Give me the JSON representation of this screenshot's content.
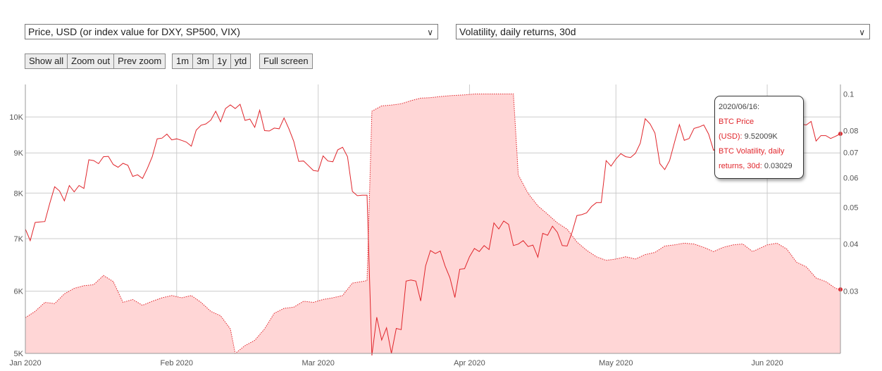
{
  "controls": {
    "left_select": "Price, USD (or index value for DXY, SP500, VIX)",
    "right_select": "Volatility, daily returns, 30d",
    "nav_buttons": [
      "Show all",
      "Zoom out",
      "Prev zoom"
    ],
    "range_buttons": [
      "1m",
      "3m",
      "1y",
      "ytd"
    ],
    "fullscreen": "Full screen"
  },
  "tooltip": {
    "date": "2020/06/16:",
    "price_label_a": "BTC Price",
    "price_label_b": "(USD):",
    "price_value": "9.52009K",
    "vol_label_a": "BTC Volatility, daily",
    "vol_label_b": "returns, 30d:",
    "vol_value": "0.03029"
  },
  "colors": {
    "price_line": "#e0252b",
    "vol_fill": "#ffd6d6",
    "vol_line": "#e0252b",
    "grid": "#cccccc"
  },
  "chart_data": {
    "type": "line",
    "x_start": "2020-01-01",
    "x_end": "2020-06-16",
    "x_ticks": [
      {
        "date": "2020-01-01",
        "label": "Jan 2020"
      },
      {
        "date": "2020-02-01",
        "label": "Feb 2020"
      },
      {
        "date": "2020-03-01",
        "label": "Mar 2020"
      },
      {
        "date": "2020-04-01",
        "label": "Apr 2020"
      },
      {
        "date": "2020-05-01",
        "label": "May 2020"
      },
      {
        "date": "2020-06-01",
        "label": "Jun 2020"
      }
    ],
    "y_left": {
      "scale": "log",
      "ylim": [
        5000,
        11000
      ],
      "ticks": [
        5000,
        6000,
        7000,
        8000,
        9000,
        10000
      ],
      "tick_labels": [
        "5K",
        "6K",
        "7K",
        "8K",
        "9K",
        "10K"
      ]
    },
    "y_right": {
      "scale": "log",
      "ylim": [
        0.0205,
        0.106
      ],
      "ticks": [
        0.03,
        0.04,
        0.05,
        0.06,
        0.07,
        0.08,
        0.1
      ],
      "tick_labels": [
        "0.03",
        "0.04",
        "0.05",
        "0.06",
        "0.07",
        "0.08",
        "0.1"
      ]
    },
    "series": [
      {
        "name": "BTC Price (USD)",
        "axis": "left",
        "type": "line",
        "points": [
          [
            "2020-01-01",
            7200
          ],
          [
            "2020-01-02",
            6960
          ],
          [
            "2020-01-03",
            7340
          ],
          [
            "2020-01-04",
            7350
          ],
          [
            "2020-01-05",
            7360
          ],
          [
            "2020-01-06",
            7760
          ],
          [
            "2020-01-07",
            8150
          ],
          [
            "2020-01-08",
            8050
          ],
          [
            "2020-01-09",
            7820
          ],
          [
            "2020-01-10",
            8180
          ],
          [
            "2020-01-11",
            8030
          ],
          [
            "2020-01-12",
            8180
          ],
          [
            "2020-01-13",
            8110
          ],
          [
            "2020-01-14",
            8820
          ],
          [
            "2020-01-15",
            8800
          ],
          [
            "2020-01-16",
            8720
          ],
          [
            "2020-01-17",
            8900
          ],
          [
            "2020-01-18",
            8910
          ],
          [
            "2020-01-19",
            8700
          ],
          [
            "2020-01-20",
            8630
          ],
          [
            "2020-01-21",
            8730
          ],
          [
            "2020-01-22",
            8680
          ],
          [
            "2020-01-23",
            8400
          ],
          [
            "2020-01-24",
            8440
          ],
          [
            "2020-01-25",
            8350
          ],
          [
            "2020-01-26",
            8600
          ],
          [
            "2020-01-27",
            8900
          ],
          [
            "2020-01-28",
            9380
          ],
          [
            "2020-01-29",
            9400
          ],
          [
            "2020-01-30",
            9510
          ],
          [
            "2020-01-31",
            9350
          ],
          [
            "2020-02-01",
            9380
          ],
          [
            "2020-02-02",
            9340
          ],
          [
            "2020-02-03",
            9290
          ],
          [
            "2020-02-04",
            9180
          ],
          [
            "2020-02-05",
            9620
          ],
          [
            "2020-02-06",
            9760
          ],
          [
            "2020-02-07",
            9800
          ],
          [
            "2020-02-08",
            9910
          ],
          [
            "2020-02-09",
            10170
          ],
          [
            "2020-02-10",
            9860
          ],
          [
            "2020-02-11",
            10250
          ],
          [
            "2020-02-12",
            10360
          ],
          [
            "2020-02-13",
            10250
          ],
          [
            "2020-02-14",
            10380
          ],
          [
            "2020-02-15",
            9900
          ],
          [
            "2020-02-16",
            9940
          ],
          [
            "2020-02-17",
            9700
          ],
          [
            "2020-02-18",
            10200
          ],
          [
            "2020-02-19",
            9610
          ],
          [
            "2020-02-20",
            9600
          ],
          [
            "2020-02-21",
            9680
          ],
          [
            "2020-02-22",
            9660
          ],
          [
            "2020-02-23",
            9970
          ],
          [
            "2020-02-24",
            9660
          ],
          [
            "2020-02-25",
            9310
          ],
          [
            "2020-02-26",
            8780
          ],
          [
            "2020-02-27",
            8790
          ],
          [
            "2020-02-28",
            8670
          ],
          [
            "2020-02-29",
            8550
          ],
          [
            "2020-03-01",
            8530
          ],
          [
            "2020-03-02",
            8920
          ],
          [
            "2020-03-03",
            8790
          ],
          [
            "2020-03-04",
            8770
          ],
          [
            "2020-03-05",
            9080
          ],
          [
            "2020-03-06",
            9150
          ],
          [
            "2020-03-07",
            8900
          ],
          [
            "2020-03-08",
            8040
          ],
          [
            "2020-03-09",
            7940
          ],
          [
            "2020-03-10",
            7950
          ],
          [
            "2020-03-11",
            7950
          ],
          [
            "2020-03-12",
            4970
          ],
          [
            "2020-03-13",
            5560
          ],
          [
            "2020-03-14",
            5200
          ],
          [
            "2020-03-15",
            5390
          ],
          [
            "2020-03-16",
            5000
          ],
          [
            "2020-03-17",
            5380
          ],
          [
            "2020-03-18",
            5360
          ],
          [
            "2020-03-19",
            6180
          ],
          [
            "2020-03-20",
            6200
          ],
          [
            "2020-03-21",
            6180
          ],
          [
            "2020-03-22",
            5830
          ],
          [
            "2020-03-23",
            6460
          ],
          [
            "2020-03-24",
            6760
          ],
          [
            "2020-03-25",
            6700
          ],
          [
            "2020-03-26",
            6750
          ],
          [
            "2020-03-27",
            6460
          ],
          [
            "2020-03-28",
            6240
          ],
          [
            "2020-03-29",
            5890
          ],
          [
            "2020-03-30",
            6400
          ],
          [
            "2020-03-31",
            6410
          ],
          [
            "2020-04-01",
            6640
          ],
          [
            "2020-04-02",
            6800
          ],
          [
            "2020-04-03",
            6740
          ],
          [
            "2020-04-04",
            6860
          ],
          [
            "2020-04-05",
            6780
          ],
          [
            "2020-04-06",
            7330
          ],
          [
            "2020-04-07",
            7200
          ],
          [
            "2020-04-08",
            7370
          ],
          [
            "2020-04-09",
            7300
          ],
          [
            "2020-04-10",
            6860
          ],
          [
            "2020-04-11",
            6890
          ],
          [
            "2020-04-12",
            6960
          ],
          [
            "2020-04-13",
            6840
          ],
          [
            "2020-04-14",
            6870
          ],
          [
            "2020-04-15",
            6630
          ],
          [
            "2020-04-16",
            7110
          ],
          [
            "2020-04-17",
            7070
          ],
          [
            "2020-04-18",
            7260
          ],
          [
            "2020-04-19",
            7130
          ],
          [
            "2020-04-20",
            6860
          ],
          [
            "2020-04-21",
            6850
          ],
          [
            "2020-04-22",
            7130
          ],
          [
            "2020-04-23",
            7490
          ],
          [
            "2020-04-24",
            7510
          ],
          [
            "2020-04-25",
            7550
          ],
          [
            "2020-04-26",
            7690
          ],
          [
            "2020-04-27",
            7780
          ],
          [
            "2020-04-28",
            7780
          ],
          [
            "2020-04-29",
            8800
          ],
          [
            "2020-04-30",
            8660
          ],
          [
            "2020-05-01",
            8840
          ],
          [
            "2020-05-02",
            8980
          ],
          [
            "2020-05-03",
            8900
          ],
          [
            "2020-05-04",
            8880
          ],
          [
            "2020-05-05",
            8990
          ],
          [
            "2020-05-06",
            9260
          ],
          [
            "2020-05-07",
            9950
          ],
          [
            "2020-05-08",
            9800
          ],
          [
            "2020-05-09",
            9540
          ],
          [
            "2020-05-10",
            8720
          ],
          [
            "2020-05-11",
            8570
          ],
          [
            "2020-05-12",
            8800
          ],
          [
            "2020-05-13",
            9280
          ],
          [
            "2020-05-14",
            9780
          ],
          [
            "2020-05-15",
            9340
          ],
          [
            "2020-05-16",
            9390
          ],
          [
            "2020-05-17",
            9670
          ],
          [
            "2020-05-18",
            9710
          ],
          [
            "2020-05-19",
            9770
          ],
          [
            "2020-05-20",
            9510
          ],
          [
            "2020-05-21",
            9070
          ],
          [
            "2020-05-22",
            9170
          ],
          [
            "2020-05-23",
            9200
          ],
          [
            "2020-05-24",
            8720
          ],
          [
            "2020-05-25",
            8900
          ],
          [
            "2020-05-26",
            8840
          ],
          [
            "2020-05-27",
            9200
          ],
          [
            "2020-05-28",
            9570
          ],
          [
            "2020-05-29",
            9430
          ],
          [
            "2020-05-30",
            9700
          ],
          [
            "2020-05-31",
            9450
          ],
          [
            "2020-06-01",
            10200
          ],
          [
            "2020-06-02",
            9520
          ],
          [
            "2020-06-03",
            9660
          ],
          [
            "2020-06-04",
            9790
          ],
          [
            "2020-06-05",
            9620
          ],
          [
            "2020-06-06",
            9670
          ],
          [
            "2020-06-07",
            9750
          ],
          [
            "2020-06-08",
            9790
          ],
          [
            "2020-06-09",
            9770
          ],
          [
            "2020-06-10",
            9870
          ],
          [
            "2020-06-11",
            9320
          ],
          [
            "2020-06-12",
            9470
          ],
          [
            "2020-06-13",
            9470
          ],
          [
            "2020-06-14",
            9390
          ],
          [
            "2020-06-15",
            9450
          ],
          [
            "2020-06-16",
            9520
          ]
        ]
      },
      {
        "name": "BTC Volatility, daily returns, 30d",
        "axis": "right",
        "type": "area",
        "points": [
          [
            "2020-01-01",
            0.0255
          ],
          [
            "2020-01-03",
            0.0265
          ],
          [
            "2020-01-05",
            0.028
          ],
          [
            "2020-01-07",
            0.0278
          ],
          [
            "2020-01-09",
            0.0295
          ],
          [
            "2020-01-11",
            0.0305
          ],
          [
            "2020-01-13",
            0.031
          ],
          [
            "2020-01-15",
            0.0312
          ],
          [
            "2020-01-17",
            0.033
          ],
          [
            "2020-01-19",
            0.0318
          ],
          [
            "2020-01-21",
            0.028
          ],
          [
            "2020-01-23",
            0.0285
          ],
          [
            "2020-01-25",
            0.0275
          ],
          [
            "2020-01-27",
            0.0282
          ],
          [
            "2020-01-29",
            0.0288
          ],
          [
            "2020-01-31",
            0.0292
          ],
          [
            "2020-02-02",
            0.0288
          ],
          [
            "2020-02-04",
            0.0292
          ],
          [
            "2020-02-06",
            0.028
          ],
          [
            "2020-02-08",
            0.0265
          ],
          [
            "2020-02-10",
            0.0258
          ],
          [
            "2020-02-12",
            0.0238
          ],
          [
            "2020-02-13",
            0.0205
          ],
          [
            "2020-02-15",
            0.0215
          ],
          [
            "2020-02-17",
            0.0222
          ],
          [
            "2020-02-19",
            0.0238
          ],
          [
            "2020-02-21",
            0.0262
          ],
          [
            "2020-02-23",
            0.027
          ],
          [
            "2020-02-25",
            0.0272
          ],
          [
            "2020-02-27",
            0.0282
          ],
          [
            "2020-02-29",
            0.028
          ],
          [
            "2020-03-02",
            0.0285
          ],
          [
            "2020-03-04",
            0.0288
          ],
          [
            "2020-03-06",
            0.0292
          ],
          [
            "2020-03-08",
            0.0315
          ],
          [
            "2020-03-10",
            0.0318
          ],
          [
            "2020-03-11",
            0.032
          ],
          [
            "2020-03-12",
            0.09
          ],
          [
            "2020-03-14",
            0.093
          ],
          [
            "2020-03-16",
            0.0935
          ],
          [
            "2020-03-18",
            0.0942
          ],
          [
            "2020-03-20",
            0.096
          ],
          [
            "2020-03-22",
            0.0975
          ],
          [
            "2020-03-24",
            0.0978
          ],
          [
            "2020-03-26",
            0.0985
          ],
          [
            "2020-03-28",
            0.099
          ],
          [
            "2020-03-31",
            0.0995
          ],
          [
            "2020-04-02",
            0.1
          ],
          [
            "2020-04-05",
            0.1
          ],
          [
            "2020-04-08",
            0.1
          ],
          [
            "2020-04-10",
            0.1
          ],
          [
            "2020-04-11",
            0.061
          ],
          [
            "2020-04-13",
            0.0545
          ],
          [
            "2020-04-15",
            0.0505
          ],
          [
            "2020-04-17",
            0.048
          ],
          [
            "2020-04-19",
            0.0455
          ],
          [
            "2020-04-21",
            0.0438
          ],
          [
            "2020-04-23",
            0.0405
          ],
          [
            "2020-04-25",
            0.0385
          ],
          [
            "2020-04-27",
            0.037
          ],
          [
            "2020-04-29",
            0.0362
          ],
          [
            "2020-05-01",
            0.0365
          ],
          [
            "2020-05-03",
            0.037
          ],
          [
            "2020-05-05",
            0.0365
          ],
          [
            "2020-05-07",
            0.0375
          ],
          [
            "2020-05-09",
            0.038
          ],
          [
            "2020-05-11",
            0.0395
          ],
          [
            "2020-05-13",
            0.0398
          ],
          [
            "2020-05-15",
            0.0402
          ],
          [
            "2020-05-17",
            0.04
          ],
          [
            "2020-05-19",
            0.0392
          ],
          [
            "2020-05-21",
            0.0382
          ],
          [
            "2020-05-23",
            0.0392
          ],
          [
            "2020-05-25",
            0.0398
          ],
          [
            "2020-05-27",
            0.04
          ],
          [
            "2020-05-29",
            0.0382
          ],
          [
            "2020-06-01",
            0.0398
          ],
          [
            "2020-06-03",
            0.0402
          ],
          [
            "2020-06-05",
            0.0388
          ],
          [
            "2020-06-07",
            0.0358
          ],
          [
            "2020-06-09",
            0.0348
          ],
          [
            "2020-06-11",
            0.0325
          ],
          [
            "2020-06-13",
            0.0318
          ],
          [
            "2020-06-15",
            0.0305
          ],
          [
            "2020-06-16",
            0.0303
          ]
        ]
      }
    ]
  }
}
